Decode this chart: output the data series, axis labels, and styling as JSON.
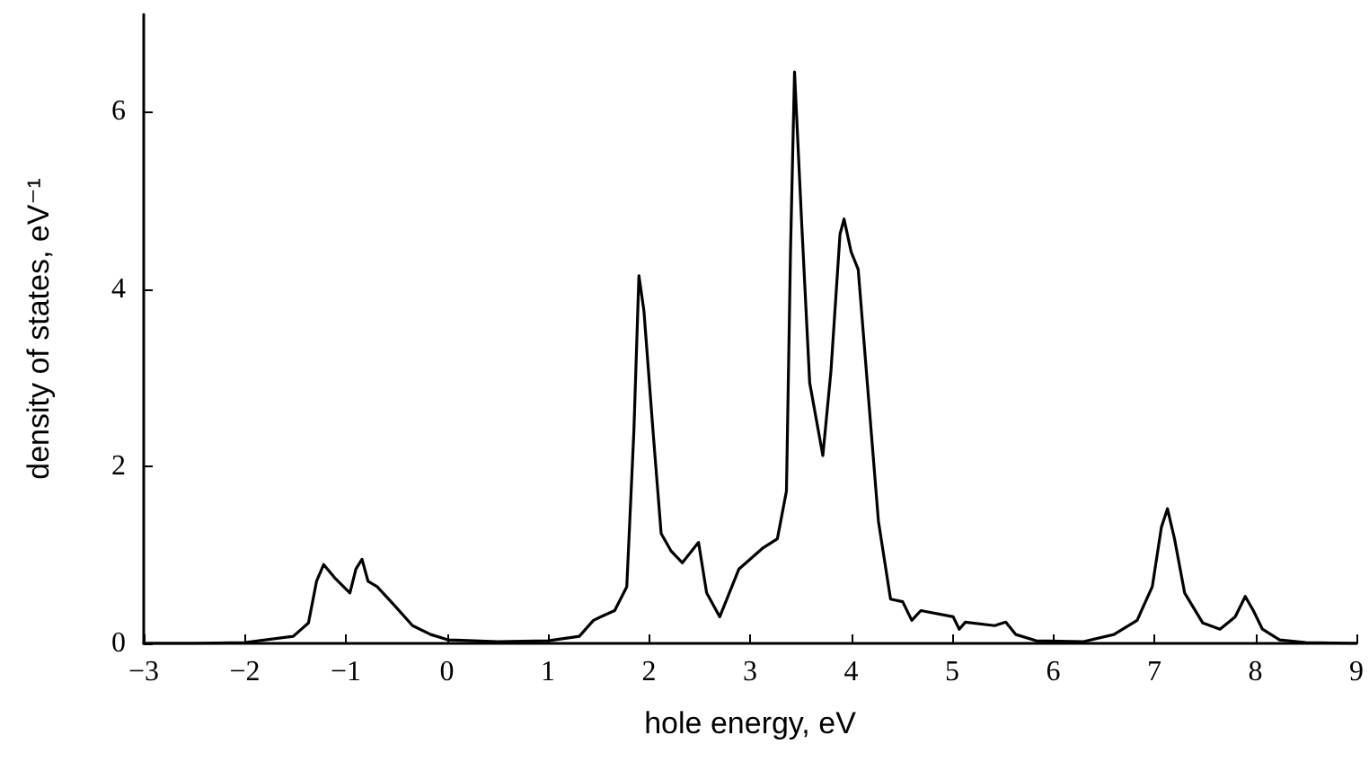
{
  "chart_data": {
    "type": "line",
    "xlabel": "hole energy, eV",
    "ylabel": "density of states, eV⁻¹",
    "color": "#000000",
    "marker": "none",
    "line_style": "solid",
    "grid": false,
    "x": [
      -3,
      -2.5,
      -2,
      -1.52,
      -1.37,
      -1.29,
      -1.22,
      -1.11,
      -0.96,
      -0.9,
      -0.84,
      -0.78,
      -0.69,
      -0.52,
      -0.34,
      -0.16,
      0.01,
      0.5,
      1,
      1.31,
      1.45,
      1.54,
      1.66,
      1.78,
      1.85,
      1.9,
      1.95,
      2.04,
      2.12,
      2.22,
      2.33,
      2.42,
      2.49,
      2.57,
      2.7,
      2.89,
      3.13,
      3.27,
      3.36,
      3.4,
      3.44,
      3.51,
      3.59,
      3.72,
      3.8,
      3.89,
      3.93,
      4,
      4.07,
      4.16,
      4.27,
      4.39,
      4.51,
      4.6,
      4.69,
      5.01,
      5.07,
      5.13,
      5.42,
      5.53,
      5.63,
      5.83,
      6.3,
      6.6,
      6.83,
      6.98,
      7.07,
      7.13,
      7.2,
      7.3,
      7.48,
      7.65,
      7.8,
      7.9,
      7.98,
      8.07,
      8.24,
      8.5,
      9
    ],
    "values": [
      0,
      0,
      0.01,
      0.08,
      0.23,
      0.7,
      0.89,
      0.74,
      0.57,
      0.84,
      0.95,
      0.7,
      0.64,
      0.43,
      0.2,
      0.1,
      0.04,
      0.02,
      0.03,
      0.08,
      0.26,
      0.31,
      0.37,
      0.64,
      2.39,
      4.15,
      3.75,
      2.39,
      1.24,
      1.04,
      0.91,
      1.04,
      1.14,
      0.57,
      0.3,
      0.84,
      1.08,
      1.18,
      1.72,
      4.42,
      6.45,
      4.76,
      2.94,
      2.12,
      3.07,
      4.62,
      4.79,
      4.42,
      4.22,
      2.94,
      1.38,
      0.5,
      0.47,
      0.26,
      0.37,
      0.3,
      0.16,
      0.24,
      0.2,
      0.24,
      0.1,
      0.03,
      0.02,
      0.1,
      0.26,
      0.64,
      1.31,
      1.52,
      1.18,
      0.57,
      0.23,
      0.16,
      0.3,
      0.53,
      0.37,
      0.16,
      0.04,
      0.01,
      0
    ],
    "xlim": [
      -3,
      9
    ],
    "ylim": [
      0,
      7.1
    ],
    "xticks": [
      -3,
      -2,
      -1,
      0,
      1,
      2,
      3,
      4,
      5,
      6,
      7,
      8,
      9
    ],
    "yticks": [
      0,
      2,
      4,
      6
    ]
  }
}
